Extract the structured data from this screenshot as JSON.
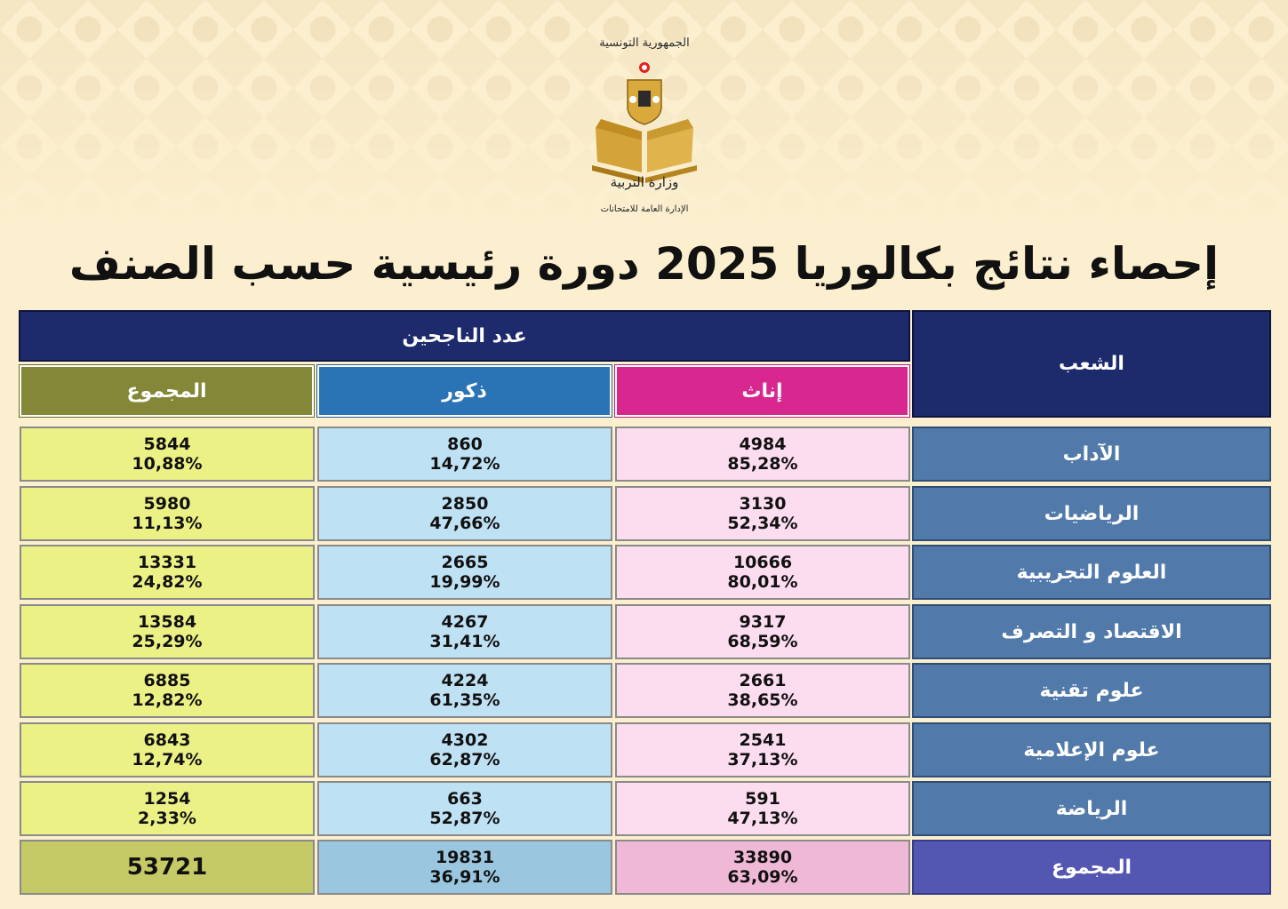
{
  "header": {
    "logo_top_text": "الجمهورية التونسية",
    "logo_mid_text": "وزارة التربية",
    "logo_bottom_text": "الإدارة العامة للامتحانات",
    "title": "إحصاء نتائج بكالوريا 2025 دورة رئيسية حسب الصنف"
  },
  "table": {
    "branch_header": "الشعب",
    "passed_header": "عدد الناجحين",
    "female_header": "إناث",
    "male_header": "ذكور",
    "total_header": "المجموع",
    "rows": [
      {
        "branch": "الآداب",
        "female": "4984",
        "female_pct": "85,28%",
        "male": "860",
        "male_pct": "14,72%",
        "total": "5844",
        "total_pct": "10,88%"
      },
      {
        "branch": "الرياضيات",
        "female": "3130",
        "female_pct": "52,34%",
        "male": "2850",
        "male_pct": "47,66%",
        "total": "5980",
        "total_pct": "11,13%"
      },
      {
        "branch": "العلوم التجريبية",
        "female": "10666",
        "female_pct": "80,01%",
        "male": "2665",
        "male_pct": "19,99%",
        "total": "13331",
        "total_pct": "24,82%"
      },
      {
        "branch": "الاقتصاد و التصرف",
        "female": "9317",
        "female_pct": "68,59%",
        "male": "4267",
        "male_pct": "31,41%",
        "total": "13584",
        "total_pct": "25,29%"
      },
      {
        "branch": "علوم تقنية",
        "female": "2661",
        "female_pct": "38,65%",
        "male": "4224",
        "male_pct": "61,35%",
        "total": "6885",
        "total_pct": "12,82%"
      },
      {
        "branch": "علوم الإعلامية",
        "female": "2541",
        "female_pct": "37,13%",
        "male": "4302",
        "male_pct": "62,87%",
        "total": "6843",
        "total_pct": "12,74%"
      },
      {
        "branch": "الرياضة",
        "female": "591",
        "female_pct": "47,13%",
        "male": "663",
        "male_pct": "52,87%",
        "total": "1254",
        "total_pct": "2,33%"
      }
    ],
    "totals": {
      "branch": "المجموع",
      "female": "33890",
      "female_pct": "63,09%",
      "male": "19831",
      "male_pct": "36,91%",
      "total": "53721"
    }
  }
}
